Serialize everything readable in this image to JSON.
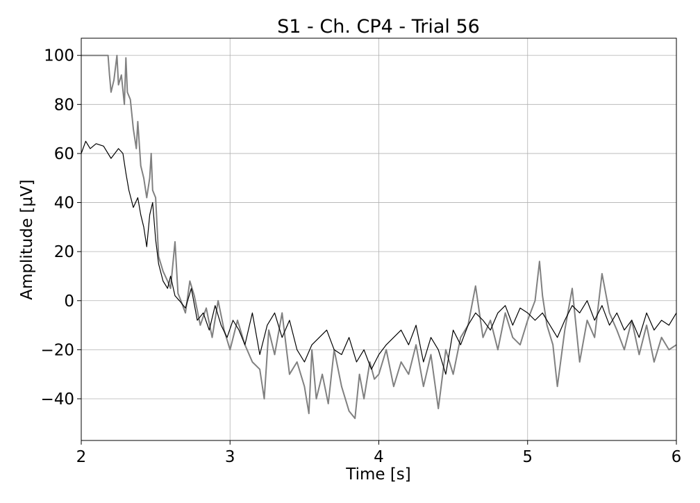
{
  "chart_data": {
    "type": "line",
    "title": "S1 - Ch. CP4 - Trial 56",
    "xlabel": "Time [s]",
    "ylabel": "Amplitude [μV]",
    "xlim": [
      2,
      6
    ],
    "ylim": [
      -57,
      107
    ],
    "xticks": [
      2,
      3,
      4,
      5,
      6
    ],
    "yticks": [
      -40,
      -20,
      0,
      20,
      40,
      60,
      80,
      100
    ],
    "ytick_labels": [
      "−40",
      "−20",
      "0",
      "20",
      "40",
      "60",
      "80",
      "100"
    ],
    "grid": true,
    "legend": "none",
    "series": [
      {
        "color": "#808080",
        "x": [
          2.0,
          2.05,
          2.1,
          2.15,
          2.18,
          2.19,
          2.2,
          2.22,
          2.24,
          2.25,
          2.27,
          2.29,
          2.3,
          2.31,
          2.33,
          2.35,
          2.37,
          2.38,
          2.4,
          2.42,
          2.44,
          2.46,
          2.47,
          2.48,
          2.5,
          2.52,
          2.55,
          2.58,
          2.6,
          2.63,
          2.65,
          2.67,
          2.7,
          2.73,
          2.76,
          2.8,
          2.84,
          2.88,
          2.92,
          2.96,
          3.0,
          3.05,
          3.1,
          3.15,
          3.2,
          3.23,
          3.26,
          3.3,
          3.35,
          3.4,
          3.45,
          3.5,
          3.53,
          3.55,
          3.58,
          3.62,
          3.66,
          3.7,
          3.75,
          3.8,
          3.84,
          3.87,
          3.9,
          3.94,
          3.97,
          4.0,
          4.05,
          4.1,
          4.15,
          4.2,
          4.25,
          4.3,
          4.35,
          4.4,
          4.45,
          4.5,
          4.55,
          4.6,
          4.65,
          4.7,
          4.75,
          4.8,
          4.85,
          4.9,
          4.95,
          5.0,
          5.05,
          5.08,
          5.1,
          5.13,
          5.17,
          5.2,
          5.25,
          5.3,
          5.35,
          5.4,
          5.45,
          5.5,
          5.55,
          5.6,
          5.65,
          5.7,
          5.75,
          5.8,
          5.85,
          5.9,
          5.95,
          6.0
        ],
        "y": [
          100,
          100,
          100,
          100,
          100,
          92,
          85,
          90,
          100,
          88,
          92,
          80,
          99,
          85,
          82,
          70,
          62,
          73,
          55,
          50,
          42,
          50,
          60,
          45,
          42,
          18,
          12,
          8,
          5,
          24,
          3,
          0,
          -5,
          8,
          2,
          -10,
          -3,
          -15,
          0,
          -12,
          -20,
          -8,
          -18,
          -25,
          -28,
          -40,
          -12,
          -22,
          -5,
          -30,
          -25,
          -35,
          -46,
          -20,
          -40,
          -30,
          -42,
          -20,
          -35,
          -45,
          -48,
          -30,
          -40,
          -25,
          -32,
          -30,
          -20,
          -35,
          -25,
          -30,
          -18,
          -35,
          -22,
          -44,
          -20,
          -30,
          -15,
          -10,
          6,
          -15,
          -8,
          -20,
          -5,
          -15,
          -18,
          -8,
          0,
          16,
          2,
          -10,
          -18,
          -35,
          -12,
          5,
          -25,
          -8,
          -15,
          11,
          -5,
          -12,
          -20,
          -8,
          -22,
          -10,
          -25,
          -15,
          -20,
          -18
        ],
        "name": ""
      },
      {
        "color": "#000000",
        "x": [
          2.0,
          2.03,
          2.06,
          2.1,
          2.15,
          2.2,
          2.25,
          2.28,
          2.3,
          2.32,
          2.35,
          2.38,
          2.4,
          2.42,
          2.44,
          2.46,
          2.48,
          2.5,
          2.52,
          2.55,
          2.58,
          2.6,
          2.63,
          2.66,
          2.7,
          2.74,
          2.78,
          2.82,
          2.86,
          2.9,
          2.94,
          2.98,
          3.02,
          3.06,
          3.1,
          3.15,
          3.2,
          3.25,
          3.3,
          3.35,
          3.4,
          3.45,
          3.5,
          3.55,
          3.6,
          3.65,
          3.7,
          3.75,
          3.8,
          3.85,
          3.9,
          3.95,
          4.0,
          4.05,
          4.1,
          4.15,
          4.2,
          4.25,
          4.3,
          4.35,
          4.4,
          4.45,
          4.5,
          4.55,
          4.6,
          4.65,
          4.7,
          4.75,
          4.8,
          4.85,
          4.9,
          4.95,
          5.0,
          5.05,
          5.1,
          5.15,
          5.2,
          5.25,
          5.3,
          5.35,
          5.4,
          5.45,
          5.5,
          5.55,
          5.6,
          5.65,
          5.7,
          5.75,
          5.8,
          5.85,
          5.9,
          5.95,
          6.0
        ],
        "y": [
          60,
          65,
          62,
          64,
          63,
          58,
          62,
          60,
          52,
          45,
          38,
          42,
          35,
          30,
          22,
          35,
          40,
          25,
          15,
          8,
          5,
          10,
          2,
          0,
          -3,
          5,
          -8,
          -5,
          -12,
          -2,
          -10,
          -15,
          -8,
          -12,
          -18,
          -5,
          -22,
          -10,
          -5,
          -15,
          -8,
          -20,
          -25,
          -18,
          -15,
          -12,
          -20,
          -22,
          -15,
          -25,
          -20,
          -28,
          -22,
          -18,
          -15,
          -12,
          -18,
          -10,
          -25,
          -15,
          -20,
          -30,
          -12,
          -18,
          -10,
          -5,
          -8,
          -12,
          -5,
          -2,
          -10,
          -3,
          -5,
          -8,
          -5,
          -10,
          -15,
          -8,
          -2,
          -5,
          0,
          -8,
          -2,
          -10,
          -5,
          -12,
          -8,
          -15,
          -5,
          -12,
          -8,
          -10,
          -5
        ],
        "name": ""
      }
    ]
  }
}
